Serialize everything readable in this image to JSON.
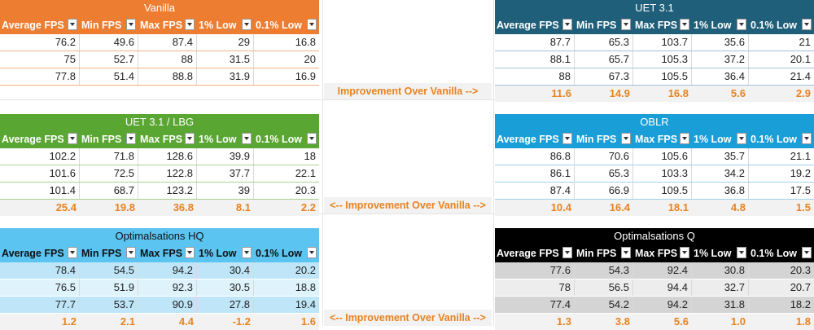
{
  "columns": [
    "Average FPS",
    "Min FPS",
    "Max FPS",
    "1% Low",
    "0.1% Low"
  ],
  "vanilla": {
    "title": "Vanilla",
    "rows": [
      [
        "76.2",
        "49.6",
        "87.4",
        "29",
        "16.8"
      ],
      [
        "75",
        "52.7",
        "88",
        "31.5",
        "20"
      ],
      [
        "77.8",
        "51.4",
        "88.8",
        "31.9",
        "16.9"
      ]
    ]
  },
  "uet": {
    "title": "UET 3.1",
    "rows": [
      [
        "87.7",
        "65.3",
        "103.7",
        "35.6",
        "21"
      ],
      [
        "88.1",
        "65.7",
        "105.3",
        "37.2",
        "20.1"
      ],
      [
        "88",
        "67.3",
        "105.5",
        "36.4",
        "21.4"
      ]
    ],
    "improvement": [
      "11.6",
      "14.9",
      "16.8",
      "5.6",
      "2.9"
    ],
    "improvement_label": "Improvement Over Vanilla -->"
  },
  "lbg": {
    "title": "UET 3.1 / LBG",
    "rows": [
      [
        "102.2",
        "71.8",
        "128.6",
        "39.9",
        "18"
      ],
      [
        "101.6",
        "72.5",
        "122.8",
        "37.7",
        "22.1"
      ],
      [
        "101.4",
        "68.7",
        "123.2",
        "39",
        "20.3"
      ]
    ],
    "improvement": [
      "25.4",
      "19.8",
      "36.8",
      "8.1",
      "2.2"
    ]
  },
  "oblr": {
    "title": "OBLR",
    "rows": [
      [
        "86.8",
        "70.6",
        "105.6",
        "35.7",
        "21.1"
      ],
      [
        "86.1",
        "65.3",
        "103.3",
        "34.2",
        "19.2"
      ],
      [
        "87.4",
        "66.9",
        "109.5",
        "36.8",
        "17.5"
      ]
    ],
    "improvement": [
      "10.4",
      "16.4",
      "18.1",
      "4.8",
      "1.5"
    ]
  },
  "mid_label_2": "<-- Improvement Over Vanilla -->",
  "ohq": {
    "title": "Optimalsations HQ",
    "rows": [
      [
        "78.4",
        "54.5",
        "94.2",
        "30.4",
        "20.2"
      ],
      [
        "76.5",
        "51.9",
        "92.3",
        "30.5",
        "18.8"
      ],
      [
        "77.7",
        "53.7",
        "90.9",
        "27.8",
        "19.4"
      ]
    ],
    "improvement": [
      "1.2",
      "2.1",
      "4.4",
      "-1.2",
      "1.6"
    ]
  },
  "oq": {
    "title": "Optimalsations Q",
    "rows": [
      [
        "77.6",
        "54.3",
        "92.4",
        "30.8",
        "20.3"
      ],
      [
        "78",
        "56.5",
        "94.4",
        "32.7",
        "20.7"
      ],
      [
        "77.4",
        "54.2",
        "94.2",
        "31.8",
        "18.2"
      ]
    ],
    "improvement": [
      "1.3",
      "3.8",
      "5.6",
      "1.0",
      "1.8"
    ]
  },
  "mid_label_3": "<-- Improvement Over Vanilla -->",
  "colors": {
    "vanilla": "#ed7d31",
    "uet": "#1f5f7a",
    "lbg": "#5aa632",
    "oblr": "#1a9ed8",
    "ohq": "#5bc4f0",
    "oq": "#000000",
    "improvement_text": "#e8821e"
  }
}
